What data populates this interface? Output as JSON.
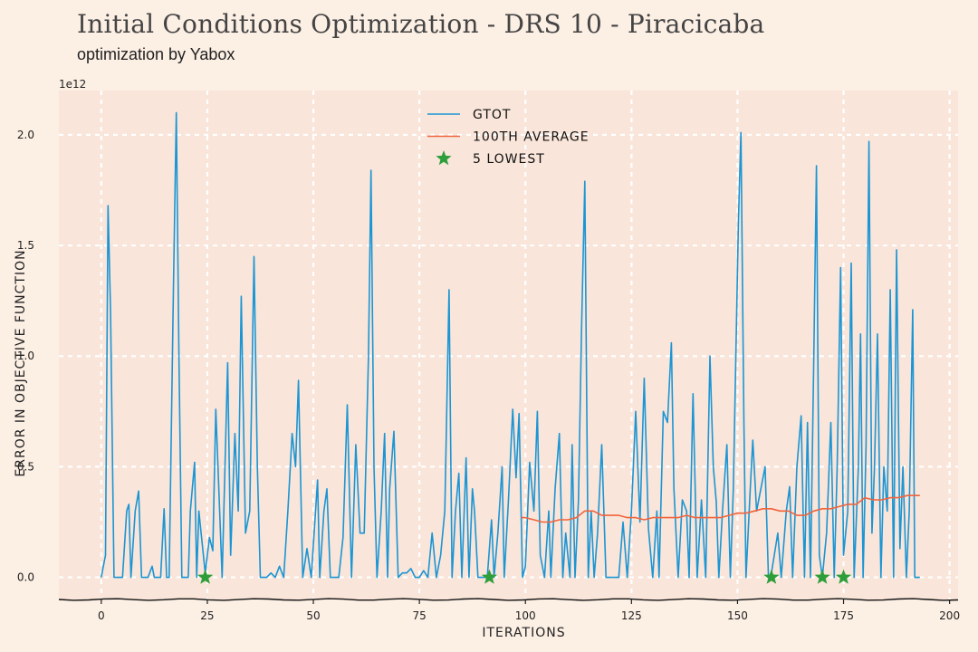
{
  "header": {
    "title": "Initial Conditions Optimization - DRS 10 - Piracicaba",
    "subtitle": "optimization by Yabox"
  },
  "colors": {
    "background": "#fcefe4",
    "plot_background": "#f9e5d9",
    "grid": "#ffffff",
    "series_gtot": "#1b95d4",
    "series_avg": "#f0643c",
    "lowest_marker": "#2e9e3a"
  },
  "chart_data": {
    "type": "line",
    "xlabel": "ITERATIONS",
    "ylabel": "ERROR IN OBJECTIVE FUNCTION",
    "y_offset_label": "1e12",
    "xlim": [
      -10,
      202
    ],
    "ylim": [
      -0.1,
      2.2
    ],
    "x_ticks": [
      0,
      25,
      50,
      75,
      100,
      125,
      150,
      175,
      200
    ],
    "x_tick_labels": [
      "0",
      "25",
      "50",
      "75",
      "100",
      "125",
      "150",
      "175",
      "200"
    ],
    "y_ticks": [
      0,
      0.5,
      1.0,
      1.5,
      2.0
    ],
    "y_tick_labels": [
      "0.0",
      "0.5",
      "1.0",
      "1.5",
      "2.0"
    ],
    "grid": true,
    "legend_position": "top-center",
    "series": [
      {
        "name": "GTOT",
        "type": "line",
        "points": [
          [
            0,
            0
          ],
          [
            1,
            0.1
          ],
          [
            1.6,
            1.68
          ],
          [
            2.2,
            1.2
          ],
          [
            3,
            0
          ],
          [
            5,
            0
          ],
          [
            6,
            0.3
          ],
          [
            6.5,
            0.33
          ],
          [
            7,
            0
          ],
          [
            8,
            0.3
          ],
          [
            8.8,
            0.39
          ],
          [
            9.5,
            0
          ],
          [
            11,
            0
          ],
          [
            12,
            0.05
          ],
          [
            12.5,
            0
          ],
          [
            14,
            0
          ],
          [
            14.8,
            0.31
          ],
          [
            15.4,
            0
          ],
          [
            16,
            0
          ],
          [
            17,
            1.3
          ],
          [
            17.7,
            2.1
          ],
          [
            18.3,
            1.0
          ],
          [
            19,
            0
          ],
          [
            20.5,
            0
          ],
          [
            21,
            0.3
          ],
          [
            22,
            0.52
          ],
          [
            22.5,
            0
          ],
          [
            23,
            0.3
          ],
          [
            24.5,
            0.02
          ],
          [
            25.5,
            0.18
          ],
          [
            26.3,
            0.12
          ],
          [
            27,
            0.76
          ],
          [
            27.8,
            0.35
          ],
          [
            28.5,
            0
          ],
          [
            29.8,
            0.97
          ],
          [
            30.5,
            0.1
          ],
          [
            31.5,
            0.65
          ],
          [
            32.3,
            0.3
          ],
          [
            33,
            1.27
          ],
          [
            34,
            0.2
          ],
          [
            35,
            0.3
          ],
          [
            36,
            1.45
          ],
          [
            36.8,
            0.5
          ],
          [
            37.5,
            0
          ],
          [
            39,
            0
          ],
          [
            40,
            0.02
          ],
          [
            41,
            0
          ],
          [
            42,
            0.05
          ],
          [
            43,
            0
          ],
          [
            44,
            0.3
          ],
          [
            45,
            0.65
          ],
          [
            45.8,
            0.5
          ],
          [
            46.5,
            0.89
          ],
          [
            47.5,
            0
          ],
          [
            48.5,
            0.13
          ],
          [
            49.5,
            0
          ],
          [
            51,
            0.44
          ],
          [
            51.5,
            0
          ],
          [
            52.5,
            0.3
          ],
          [
            53.2,
            0.4
          ],
          [
            54,
            0
          ],
          [
            55,
            0
          ],
          [
            56,
            0
          ],
          [
            57,
            0.18
          ],
          [
            58,
            0.78
          ],
          [
            59,
            0
          ],
          [
            60,
            0.6
          ],
          [
            61,
            0.2
          ],
          [
            62,
            0.2
          ],
          [
            63,
            1.0
          ],
          [
            63.6,
            1.84
          ],
          [
            64.3,
            0.5
          ],
          [
            65,
            0
          ],
          [
            66,
            0.3
          ],
          [
            66.8,
            0.65
          ],
          [
            67.5,
            0
          ],
          [
            68,
            0.4
          ],
          [
            69,
            0.66
          ],
          [
            70,
            0
          ],
          [
            71,
            0.02
          ],
          [
            72,
            0.02
          ],
          [
            73,
            0.04
          ],
          [
            74,
            0
          ],
          [
            75,
            0
          ],
          [
            76,
            0.03
          ],
          [
            77,
            0
          ],
          [
            78,
            0.2
          ],
          [
            79,
            0
          ],
          [
            80,
            0.1
          ],
          [
            81,
            0.3
          ],
          [
            82,
            1.3
          ],
          [
            82.7,
            0
          ],
          [
            83.5,
            0.3
          ],
          [
            84.3,
            0.47
          ],
          [
            85,
            0
          ],
          [
            86,
            0.54
          ],
          [
            86.7,
            0
          ],
          [
            87.5,
            0.4
          ],
          [
            88,
            0.3
          ],
          [
            88.8,
            0
          ],
          [
            91,
            0
          ],
          [
            92,
            0.26
          ],
          [
            92.6,
            0
          ],
          [
            93.5,
            0.2
          ],
          [
            94.5,
            0.5
          ],
          [
            95,
            0
          ],
          [
            96,
            0.35
          ],
          [
            97,
            0.76
          ],
          [
            97.8,
            0.45
          ],
          [
            98.5,
            0.74
          ],
          [
            99.3,
            0
          ],
          [
            100,
            0.05
          ],
          [
            101,
            0.52
          ],
          [
            102,
            0.3
          ],
          [
            102.8,
            0.75
          ],
          [
            103.5,
            0.1
          ],
          [
            104.5,
            0
          ],
          [
            105.5,
            0.3
          ],
          [
            106,
            0
          ],
          [
            107,
            0.4
          ],
          [
            108,
            0.65
          ],
          [
            108.8,
            0
          ],
          [
            109.5,
            0.2
          ],
          [
            110.5,
            0
          ],
          [
            111,
            0.6
          ],
          [
            111.7,
            0
          ],
          [
            112.5,
            0.35
          ],
          [
            113.2,
            1.1
          ],
          [
            114,
            1.79
          ],
          [
            114.8,
            0
          ],
          [
            115.5,
            0.3
          ],
          [
            116.2,
            0
          ],
          [
            117,
            0.2
          ],
          [
            118,
            0.6
          ],
          [
            119,
            0
          ],
          [
            120,
            0
          ],
          [
            122,
            0
          ],
          [
            123,
            0.25
          ],
          [
            124,
            0
          ],
          [
            125,
            0.3
          ],
          [
            126,
            0.75
          ],
          [
            127,
            0.25
          ],
          [
            128,
            0.9
          ],
          [
            129,
            0.22
          ],
          [
            130,
            0
          ],
          [
            131,
            0.3
          ],
          [
            131.5,
            0
          ],
          [
            132.5,
            0.75
          ],
          [
            133.5,
            0.7
          ],
          [
            134.4,
            1.06
          ],
          [
            135,
            0.4
          ],
          [
            136,
            0
          ],
          [
            137,
            0.35
          ],
          [
            138,
            0.3
          ],
          [
            138.6,
            0
          ],
          [
            139.5,
            0.83
          ],
          [
            140.5,
            0
          ],
          [
            141.5,
            0.35
          ],
          [
            142.5,
            0
          ],
          [
            143.5,
            1.0
          ],
          [
            144.3,
            0.5
          ],
          [
            145,
            0.34
          ],
          [
            145.6,
            0
          ],
          [
            146.5,
            0.31
          ],
          [
            147.5,
            0.6
          ],
          [
            148.3,
            0
          ],
          [
            149,
            0.4
          ],
          [
            150.2,
            1.6
          ],
          [
            150.8,
            2.01
          ],
          [
            151.5,
            0.7
          ],
          [
            152,
            0
          ],
          [
            153,
            0.4
          ],
          [
            153.6,
            0.62
          ],
          [
            154.5,
            0.3
          ],
          [
            155.5,
            0.4
          ],
          [
            156.5,
            0.5
          ],
          [
            157.3,
            0
          ],
          [
            158,
            0.02
          ],
          [
            159.5,
            0.2
          ],
          [
            160.3,
            0
          ],
          [
            161.5,
            0.3
          ],
          [
            162.3,
            0.41
          ],
          [
            163,
            0
          ],
          [
            164,
            0.5
          ],
          [
            165,
            0.73
          ],
          [
            165.8,
            0
          ],
          [
            166.5,
            0.7
          ],
          [
            167.2,
            0
          ],
          [
            168,
            1.0
          ],
          [
            168.6,
            1.86
          ],
          [
            169.3,
            0.1
          ],
          [
            170,
            0
          ],
          [
            171,
            0.2
          ],
          [
            172,
            0.7
          ],
          [
            172.8,
            0
          ],
          [
            173.5,
            0.5
          ],
          [
            174.3,
            1.4
          ],
          [
            175,
            0.1
          ],
          [
            176,
            0.3
          ],
          [
            176.8,
            1.42
          ],
          [
            177.5,
            0
          ],
          [
            178.5,
            0.5
          ],
          [
            179,
            1.1
          ],
          [
            179.6,
            0
          ],
          [
            180.3,
            0.6
          ],
          [
            181,
            1.97
          ],
          [
            181.7,
            0.2
          ],
          [
            182.3,
            0.5
          ],
          [
            183,
            1.1
          ],
          [
            183.8,
            0
          ],
          [
            184.5,
            0.5
          ],
          [
            185.3,
            0.3
          ],
          [
            186,
            1.3
          ],
          [
            186.8,
            0
          ],
          [
            187.5,
            1.48
          ],
          [
            188.3,
            0.13
          ],
          [
            189,
            0.5
          ],
          [
            189.8,
            0
          ],
          [
            190.5,
            0.3
          ],
          [
            191.3,
            1.21
          ],
          [
            191.8,
            0
          ],
          [
            193,
            0
          ]
        ]
      },
      {
        "name": "100TH AVERAGE",
        "type": "line",
        "points": [
          [
            99,
            0.27
          ],
          [
            100,
            0.27
          ],
          [
            102,
            0.26
          ],
          [
            104,
            0.25
          ],
          [
            106,
            0.25
          ],
          [
            108,
            0.26
          ],
          [
            110,
            0.26
          ],
          [
            112,
            0.27
          ],
          [
            114,
            0.3
          ],
          [
            116,
            0.3
          ],
          [
            118,
            0.28
          ],
          [
            120,
            0.28
          ],
          [
            122,
            0.28
          ],
          [
            124,
            0.27
          ],
          [
            126,
            0.27
          ],
          [
            128,
            0.26
          ],
          [
            130,
            0.27
          ],
          [
            132,
            0.27
          ],
          [
            134,
            0.27
          ],
          [
            136,
            0.27
          ],
          [
            138,
            0.28
          ],
          [
            140,
            0.27
          ],
          [
            142,
            0.27
          ],
          [
            144,
            0.27
          ],
          [
            146,
            0.27
          ],
          [
            148,
            0.28
          ],
          [
            150,
            0.29
          ],
          [
            152,
            0.29
          ],
          [
            154,
            0.3
          ],
          [
            156,
            0.31
          ],
          [
            158,
            0.31
          ],
          [
            160,
            0.3
          ],
          [
            162,
            0.3
          ],
          [
            164,
            0.28
          ],
          [
            166,
            0.28
          ],
          [
            168,
            0.3
          ],
          [
            170,
            0.31
          ],
          [
            172,
            0.31
          ],
          [
            174,
            0.32
          ],
          [
            176,
            0.33
          ],
          [
            178,
            0.33
          ],
          [
            180,
            0.36
          ],
          [
            182,
            0.35
          ],
          [
            184,
            0.35
          ],
          [
            186,
            0.36
          ],
          [
            188,
            0.36
          ],
          [
            190,
            0.37
          ],
          [
            192,
            0.37
          ],
          [
            193,
            0.37
          ]
        ]
      },
      {
        "name": "5 LOWEST",
        "type": "scatter",
        "points": [
          [
            24.5,
            0
          ],
          [
            91.5,
            0
          ],
          [
            158,
            0
          ],
          [
            170,
            0
          ],
          [
            175,
            0
          ]
        ]
      }
    ]
  }
}
